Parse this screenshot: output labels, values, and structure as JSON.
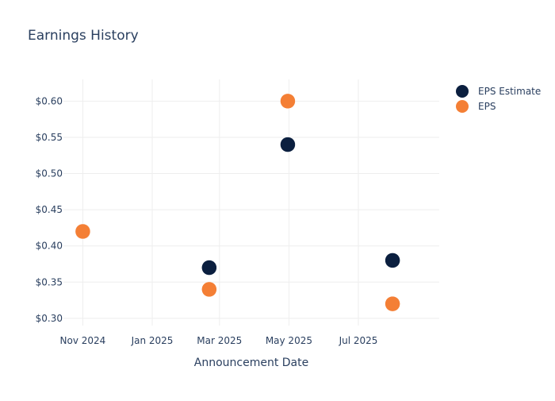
{
  "chart_data": {
    "type": "scatter",
    "title": "Earnings History",
    "xlabel": "Announcement Date",
    "ylabel": "",
    "x_type": "date",
    "xlim": [
      "2024-10-15",
      "2025-09-10"
    ],
    "ylim": [
      0.29,
      0.63
    ],
    "x_ticks": [
      {
        "value": "2024-11-01",
        "label": "Nov 2024"
      },
      {
        "value": "2025-01-01",
        "label": "Jan 2025"
      },
      {
        "value": "2025-03-01",
        "label": "Mar 2025"
      },
      {
        "value": "2025-05-01",
        "label": "May 2025"
      },
      {
        "value": "2025-07-01",
        "label": "Jul 2025"
      }
    ],
    "y_ticks": [
      {
        "value": 0.3,
        "label": "$0.30"
      },
      {
        "value": 0.35,
        "label": "$0.35"
      },
      {
        "value": 0.4,
        "label": "$0.40"
      },
      {
        "value": 0.45,
        "label": "$0.45"
      },
      {
        "value": 0.5,
        "label": "$0.50"
      },
      {
        "value": 0.55,
        "label": "$0.55"
      },
      {
        "value": 0.6,
        "label": "$0.60"
      }
    ],
    "grid": true,
    "legend_position": "top-right",
    "series": [
      {
        "name": "EPS Estimate",
        "color": "#0b1f3f",
        "points": [
          {
            "x": "2024-11-01",
            "y": 0.42
          },
          {
            "x": "2025-02-20",
            "y": 0.37
          },
          {
            "x": "2025-04-30",
            "y": 0.54
          },
          {
            "x": "2025-07-31",
            "y": 0.38
          }
        ]
      },
      {
        "name": "EPS",
        "color": "#f47f35",
        "points": [
          {
            "x": "2024-11-01",
            "y": 0.42
          },
          {
            "x": "2025-02-20",
            "y": 0.34
          },
          {
            "x": "2025-04-30",
            "y": 0.6
          },
          {
            "x": "2025-07-31",
            "y": 0.32
          }
        ]
      }
    ]
  }
}
